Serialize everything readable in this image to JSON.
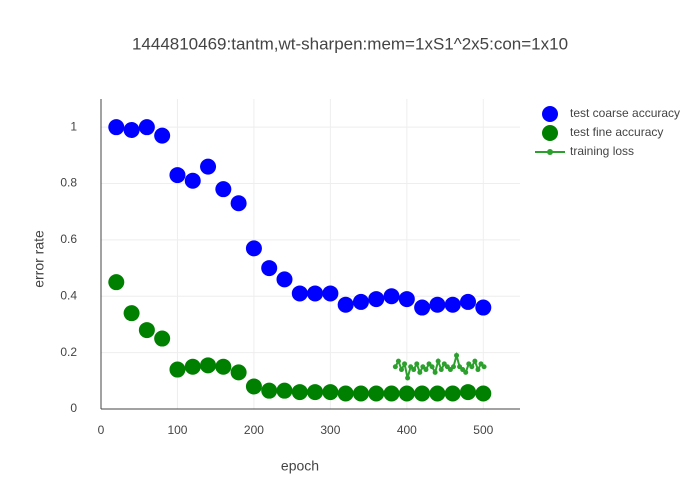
{
  "chart_data": {
    "type": "scatter",
    "title": "1444810469:tantm,wt-sharpen:mem=1xS1^2x5:con=1x10",
    "x_label": "epoch",
    "y_label": "error rate",
    "xlim": [
      0,
      548
    ],
    "ylim": [
      0,
      1.1
    ],
    "xticks": [
      0,
      100,
      200,
      300,
      400,
      500
    ],
    "yticks": [
      0,
      0.2,
      0.4,
      0.6,
      0.8,
      1
    ],
    "grid": true,
    "legend": "right",
    "series": [
      {
        "name": "test coarse accuracy",
        "color": "#0000ff",
        "mode": "markers",
        "x": [
          20,
          40,
          60,
          80,
          100,
          120,
          140,
          160,
          180,
          200,
          220,
          240,
          260,
          280,
          300,
          320,
          340,
          360,
          380,
          400,
          420,
          440,
          460,
          480,
          500
        ],
        "values": [
          1.0,
          0.99,
          1.0,
          0.97,
          0.83,
          0.81,
          0.86,
          0.78,
          0.73,
          0.57,
          0.5,
          0.46,
          0.41,
          0.41,
          0.41,
          0.37,
          0.38,
          0.39,
          0.4,
          0.39,
          0.36,
          0.37,
          0.37,
          0.38,
          0.36
        ]
      },
      {
        "name": "test fine accuracy",
        "color": "#008000",
        "mode": "markers",
        "x": [
          20,
          40,
          60,
          80,
          100,
          120,
          140,
          160,
          180,
          200,
          220,
          240,
          260,
          280,
          300,
          320,
          340,
          360,
          380,
          400,
          420,
          440,
          460,
          480,
          500
        ],
        "values": [
          0.45,
          0.34,
          0.28,
          0.25,
          0.14,
          0.15,
          0.155,
          0.15,
          0.13,
          0.08,
          0.065,
          0.065,
          0.06,
          0.06,
          0.06,
          0.055,
          0.055,
          0.055,
          0.055,
          0.055,
          0.055,
          0.055,
          0.055,
          0.06,
          0.055
        ]
      },
      {
        "name": "training loss",
        "color": "#2ca02c",
        "mode": "lines+markers",
        "x": [
          385,
          389,
          393,
          397,
          401,
          405,
          409,
          413,
          417,
          421,
          425,
          429,
          433,
          437,
          441,
          445,
          449,
          453,
          457,
          461,
          465,
          469,
          473,
          477,
          481,
          485,
          489,
          493,
          497,
          501
        ],
        "values": [
          0.15,
          0.17,
          0.14,
          0.16,
          0.11,
          0.15,
          0.14,
          0.16,
          0.13,
          0.15,
          0.14,
          0.16,
          0.15,
          0.13,
          0.17,
          0.14,
          0.16,
          0.15,
          0.14,
          0.15,
          0.19,
          0.15,
          0.14,
          0.13,
          0.16,
          0.15,
          0.17,
          0.14,
          0.16,
          0.15
        ]
      }
    ]
  }
}
